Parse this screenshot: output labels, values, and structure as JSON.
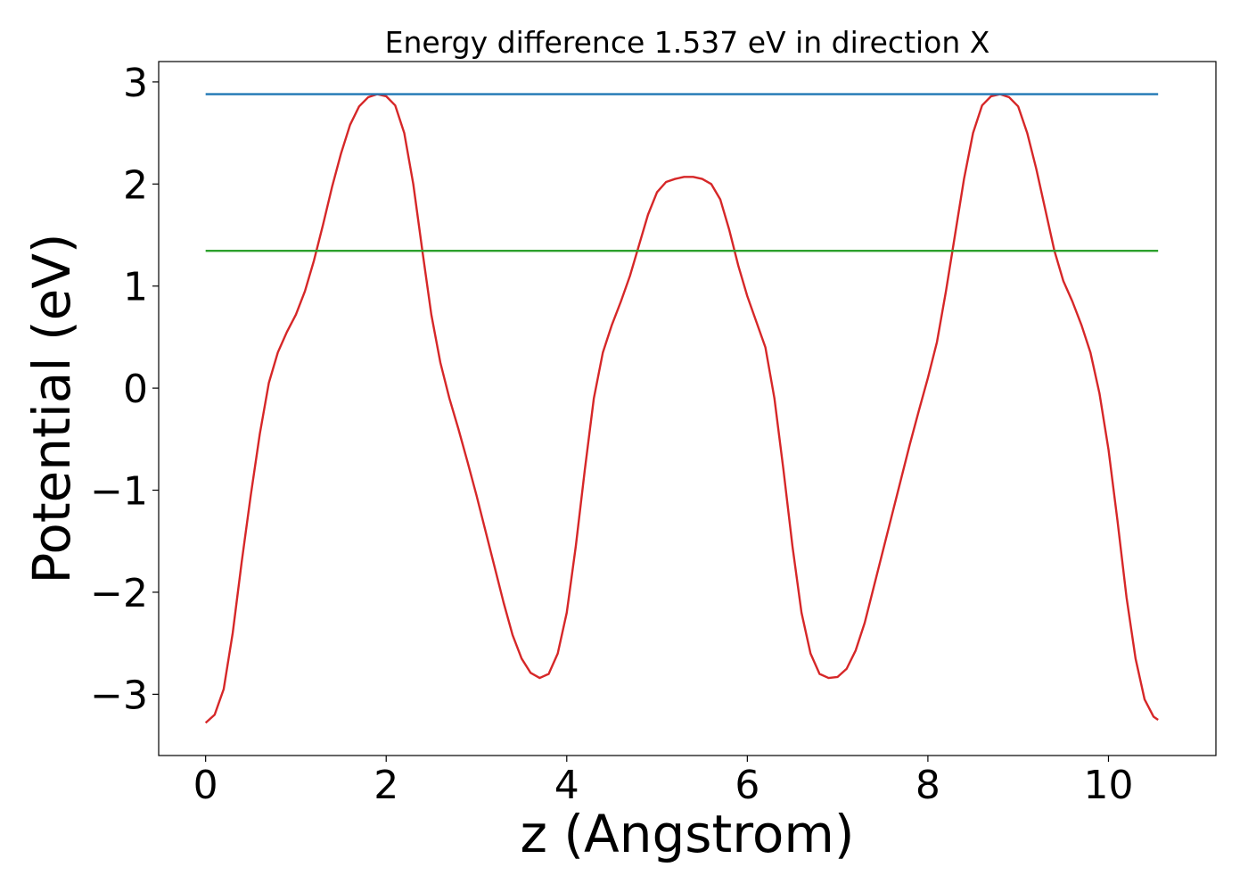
{
  "chart_data": {
    "type": "line",
    "title": "Energy difference 1.537 eV in direction X",
    "xlabel": "z (Angstrom)",
    "ylabel": "Potential (eV)",
    "xlim": [
      -0.52,
      11.19
    ],
    "ylim": [
      -3.6,
      3.2
    ],
    "xticks": [
      0,
      2,
      4,
      6,
      8,
      10
    ],
    "xtick_labels": [
      "0",
      "2",
      "4",
      "6",
      "8",
      "10"
    ],
    "yticks": [
      -3,
      -2,
      -1,
      0,
      1,
      2,
      3
    ],
    "ytick_labels": [
      "−3",
      "−2",
      "−1",
      "0",
      "1",
      "2",
      "3"
    ],
    "grid": false,
    "series": [
      {
        "color": "#d62728",
        "points": [
          [
            0.0,
            -3.28
          ],
          [
            0.1,
            -3.2
          ],
          [
            0.2,
            -2.95
          ],
          [
            0.3,
            -2.4
          ],
          [
            0.4,
            -1.7
          ],
          [
            0.5,
            -1.05
          ],
          [
            0.6,
            -0.45
          ],
          [
            0.7,
            0.05
          ],
          [
            0.8,
            0.35
          ],
          [
            0.9,
            0.55
          ],
          [
            1.0,
            0.72
          ],
          [
            1.1,
            0.95
          ],
          [
            1.2,
            1.25
          ],
          [
            1.3,
            1.6
          ],
          [
            1.4,
            1.97
          ],
          [
            1.5,
            2.3
          ],
          [
            1.6,
            2.58
          ],
          [
            1.7,
            2.76
          ],
          [
            1.8,
            2.85
          ],
          [
            1.9,
            2.88
          ],
          [
            2.0,
            2.86
          ],
          [
            2.1,
            2.77
          ],
          [
            2.2,
            2.5
          ],
          [
            2.3,
            2.0
          ],
          [
            2.4,
            1.35
          ],
          [
            2.5,
            0.72
          ],
          [
            2.6,
            0.25
          ],
          [
            2.7,
            -0.1
          ],
          [
            2.8,
            -0.4
          ],
          [
            2.9,
            -0.72
          ],
          [
            3.0,
            -1.05
          ],
          [
            3.1,
            -1.4
          ],
          [
            3.2,
            -1.75
          ],
          [
            3.3,
            -2.1
          ],
          [
            3.4,
            -2.42
          ],
          [
            3.5,
            -2.65
          ],
          [
            3.6,
            -2.79
          ],
          [
            3.7,
            -2.84
          ],
          [
            3.8,
            -2.8
          ],
          [
            3.9,
            -2.6
          ],
          [
            4.0,
            -2.2
          ],
          [
            4.1,
            -1.55
          ],
          [
            4.2,
            -0.8
          ],
          [
            4.3,
            -0.1
          ],
          [
            4.4,
            0.35
          ],
          [
            4.5,
            0.62
          ],
          [
            4.6,
            0.85
          ],
          [
            4.7,
            1.1
          ],
          [
            4.8,
            1.4
          ],
          [
            4.9,
            1.7
          ],
          [
            5.0,
            1.92
          ],
          [
            5.1,
            2.02
          ],
          [
            5.2,
            2.05
          ],
          [
            5.3,
            2.07
          ],
          [
            5.4,
            2.07
          ],
          [
            5.5,
            2.05
          ],
          [
            5.6,
            2.0
          ],
          [
            5.7,
            1.85
          ],
          [
            5.8,
            1.55
          ],
          [
            5.9,
            1.2
          ],
          [
            6.0,
            0.9
          ],
          [
            6.1,
            0.65
          ],
          [
            6.2,
            0.4
          ],
          [
            6.3,
            -0.1
          ],
          [
            6.4,
            -0.8
          ],
          [
            6.5,
            -1.55
          ],
          [
            6.6,
            -2.2
          ],
          [
            6.7,
            -2.6
          ],
          [
            6.8,
            -2.8
          ],
          [
            6.9,
            -2.84
          ],
          [
            7.0,
            -2.83
          ],
          [
            7.1,
            -2.75
          ],
          [
            7.2,
            -2.57
          ],
          [
            7.3,
            -2.3
          ],
          [
            7.4,
            -1.95
          ],
          [
            7.5,
            -1.6
          ],
          [
            7.6,
            -1.25
          ],
          [
            7.7,
            -0.9
          ],
          [
            7.8,
            -0.55
          ],
          [
            7.9,
            -0.22
          ],
          [
            8.0,
            0.1
          ],
          [
            8.1,
            0.45
          ],
          [
            8.2,
            0.95
          ],
          [
            8.3,
            1.5
          ],
          [
            8.4,
            2.05
          ],
          [
            8.5,
            2.5
          ],
          [
            8.6,
            2.77
          ],
          [
            8.7,
            2.86
          ],
          [
            8.8,
            2.88
          ],
          [
            8.9,
            2.85
          ],
          [
            9.0,
            2.76
          ],
          [
            9.1,
            2.5
          ],
          [
            9.2,
            2.15
          ],
          [
            9.3,
            1.75
          ],
          [
            9.4,
            1.35
          ],
          [
            9.5,
            1.05
          ],
          [
            9.6,
            0.85
          ],
          [
            9.7,
            0.62
          ],
          [
            9.8,
            0.35
          ],
          [
            9.9,
            -0.05
          ],
          [
            10.0,
            -0.6
          ],
          [
            10.1,
            -1.3
          ],
          [
            10.2,
            -2.05
          ],
          [
            10.3,
            -2.65
          ],
          [
            10.4,
            -3.05
          ],
          [
            10.5,
            -3.22
          ],
          [
            10.55,
            -3.25
          ]
        ]
      },
      {
        "color": "#1f77b4",
        "points": [
          [
            0.0,
            2.88
          ],
          [
            10.55,
            2.88
          ]
        ]
      },
      {
        "color": "#2ca02c",
        "points": [
          [
            0.0,
            1.345
          ],
          [
            10.55,
            1.345
          ]
        ]
      }
    ]
  }
}
